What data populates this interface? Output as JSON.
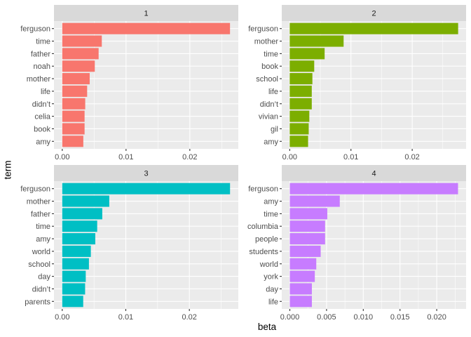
{
  "chart_data": {
    "type": "bar",
    "orientation": "horizontal",
    "facet_layout": "2x2",
    "xlabel": "beta",
    "ylabel": "term",
    "colors": {
      "panel_background": "#ebebeb",
      "grid_major": "#ffffff",
      "strip_background": "#d9d9d9"
    },
    "panels": [
      {
        "label": "1",
        "color": "#F8766D",
        "xlim": [
          -0.0013,
          0.0276
        ],
        "xticks": [
          0,
          0.01,
          0.02
        ],
        "xtick_labels": [
          "0.00",
          "0.01",
          "0.02"
        ],
        "terms": [
          "ferguson",
          "time",
          "father",
          "noah",
          "mother",
          "life",
          "didn’t",
          "celia",
          "book",
          "amy"
        ],
        "values": [
          0.0263,
          0.0062,
          0.0057,
          0.0051,
          0.0043,
          0.0039,
          0.0036,
          0.0035,
          0.0035,
          0.0033
        ]
      },
      {
        "label": "2",
        "color": "#7CAE00",
        "xlim": [
          -0.0013,
          0.0288
        ],
        "xticks": [
          0,
          0.01,
          0.02
        ],
        "xtick_labels": [
          "0.00",
          "0.01",
          "0.02"
        ],
        "terms": [
          "ferguson",
          "mother",
          "time",
          "book",
          "school",
          "life",
          "didn’t",
          "vivian",
          "gil",
          "amy"
        ],
        "values": [
          0.0275,
          0.0088,
          0.0057,
          0.004,
          0.0037,
          0.0036,
          0.0036,
          0.0032,
          0.0031,
          0.003
        ]
      },
      {
        "label": "3",
        "color": "#00BFC4",
        "xlim": [
          -0.0013,
          0.0277
        ],
        "xticks": [
          0,
          0.01,
          0.02
        ],
        "xtick_labels": [
          "0.00",
          "0.01",
          "0.02"
        ],
        "terms": [
          "ferguson",
          "mother",
          "father",
          "time",
          "amy",
          "world",
          "school",
          "day",
          "didn’t",
          "parents"
        ],
        "values": [
          0.0264,
          0.0074,
          0.0063,
          0.0055,
          0.0052,
          0.0045,
          0.0042,
          0.0037,
          0.0036,
          0.0033
        ]
      },
      {
        "label": "4",
        "color": "#C77CFF",
        "xlim": [
          -0.0011,
          0.024
        ],
        "xticks": [
          0,
          0.005,
          0.01,
          0.015,
          0.02
        ],
        "xtick_labels": [
          "0.000",
          "0.005",
          "0.010",
          "0.015",
          "0.020"
        ],
        "terms": [
          "ferguson",
          "amy",
          "time",
          "columbia",
          "people",
          "students",
          "world",
          "york",
          "day",
          "life"
        ],
        "values": [
          0.0229,
          0.0068,
          0.0051,
          0.0048,
          0.0048,
          0.0042,
          0.0036,
          0.0034,
          0.003,
          0.003
        ]
      }
    ]
  }
}
